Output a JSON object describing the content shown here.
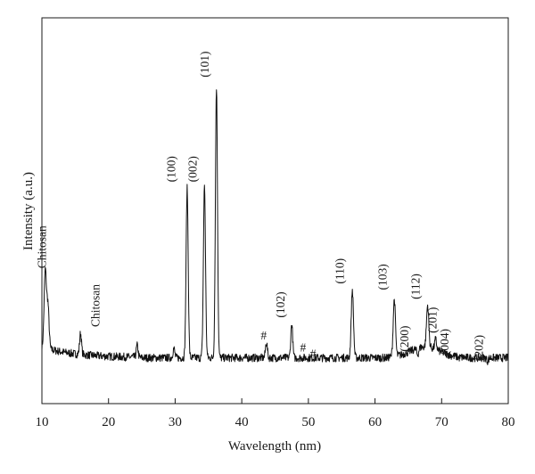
{
  "chart_data": {
    "type": "line",
    "title": "",
    "xlabel": "Wavelength (nm)",
    "ylabel": "Intensity (a.u.)",
    "xlim": [
      10,
      80
    ],
    "ylim": [
      0,
      100
    ],
    "y_ticks_shown": false,
    "grid": false,
    "legend": "none",
    "x_ticks": [
      10,
      20,
      30,
      40,
      50,
      60,
      70,
      80
    ],
    "peaks": [
      {
        "x": 10.5,
        "y": 31,
        "label": ""
      },
      {
        "x": 10.9,
        "y": 20
      },
      {
        "x": 15.8,
        "y": 11
      },
      {
        "x": 24.3,
        "y": 7
      },
      {
        "x": 29.8,
        "y": 6
      },
      {
        "x": 31.8,
        "y": 58
      },
      {
        "x": 34.4,
        "y": 59
      },
      {
        "x": 36.2,
        "y": 91
      },
      {
        "x": 43.7,
        "y": 8
      },
      {
        "x": 47.5,
        "y": 14
      },
      {
        "x": 56.6,
        "y": 25
      },
      {
        "x": 62.9,
        "y": 22
      },
      {
        "x": 66.4,
        "y": 4
      },
      {
        "x": 67.9,
        "y": 20
      },
      {
        "x": 69.1,
        "y": 9
      },
      {
        "x": 72.6,
        "y": 3
      },
      {
        "x": 76.9,
        "y": 2
      }
    ],
    "annotations": [
      {
        "text": "Chitosan",
        "x": 10.6,
        "y": 32,
        "rotate": true
      },
      {
        "text": "Chitosan",
        "x": 18.6,
        "y": 13,
        "rotate": true
      },
      {
        "text": "(100)",
        "x": 30.0,
        "y": 60,
        "rotate": true
      },
      {
        "text": "(002)",
        "x": 33.2,
        "y": 60,
        "rotate": true
      },
      {
        "text": "(101)",
        "x": 35.0,
        "y": 94,
        "rotate": true
      },
      {
        "text": "#",
        "x": 43.3,
        "y": 9,
        "rotate": false
      },
      {
        "text": "(102)",
        "x": 46.4,
        "y": 16,
        "rotate": true
      },
      {
        "text": "#",
        "x": 49.2,
        "y": 5,
        "rotate": false
      },
      {
        "text": "#",
        "x": 50.7,
        "y": 3,
        "rotate": false
      },
      {
        "text": "(110)",
        "x": 55.3,
        "y": 27,
        "rotate": true
      },
      {
        "text": "(103)",
        "x": 61.7,
        "y": 25,
        "rotate": true
      },
      {
        "text": "(200)",
        "x": 65.0,
        "y": 5,
        "rotate": true
      },
      {
        "text": "(112)",
        "x": 66.7,
        "y": 22,
        "rotate": true
      },
      {
        "text": "(201)",
        "x": 69.2,
        "y": 11,
        "rotate": true
      },
      {
        "text": "(004)",
        "x": 71.0,
        "y": 4,
        "rotate": true
      },
      {
        "text": "(202)",
        "x": 76.2,
        "y": 2,
        "rotate": true
      }
    ]
  }
}
